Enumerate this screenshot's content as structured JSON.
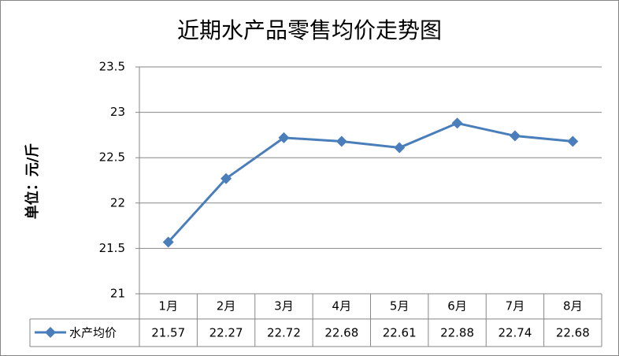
{
  "chart_data": {
    "type": "line",
    "title": "近期水产品零售均价走势图",
    "y_label": "单位：元/斤",
    "categories": [
      "1月",
      "2月",
      "3月",
      "4月",
      "5月",
      "6月",
      "7月",
      "8月"
    ],
    "series": [
      {
        "name": "水产均价",
        "color": "#4a7ebb",
        "values": [
          21.57,
          22.27,
          22.72,
          22.68,
          22.61,
          22.88,
          22.74,
          22.68
        ]
      }
    ],
    "ylim": [
      21,
      23.5
    ],
    "yticks": [
      21,
      21.5,
      22,
      22.5,
      23,
      23.5
    ],
    "grid": true,
    "data_table": true
  }
}
